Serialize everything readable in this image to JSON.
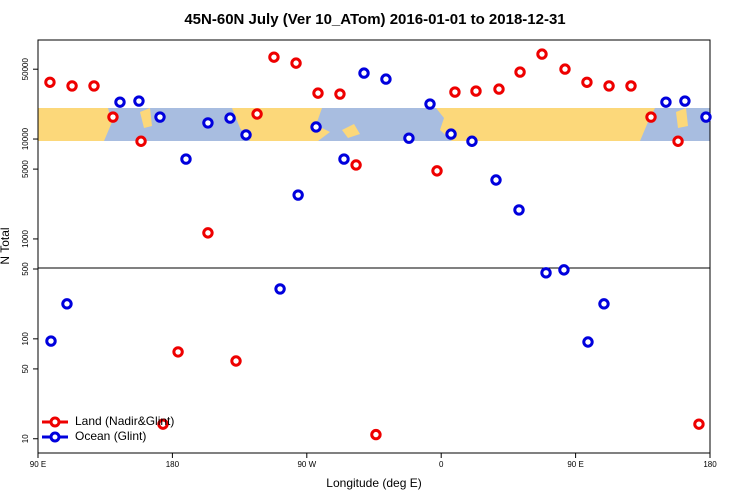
{
  "chart_data": {
    "type": "scatter",
    "title": "45N-60N July (Ver 10_ATom)   2016-01-01 to 2018-12-31",
    "x_label": "Longitude (deg E)",
    "y_label": "N Total",
    "xlim": [
      90,
      540
    ],
    "xticks": [
      {
        "value": 90,
        "label": "90 E"
      },
      180,
      {
        "value": 270,
        "label": "90 W"
      },
      {
        "value": 360,
        "label": "0"
      },
      {
        "value": 450,
        "label": "90 E"
      },
      {
        "value": 540,
        "label": "180"
      }
    ],
    "ylim": [
      7.2,
      98000
    ],
    "y_log": true,
    "yticks": [
      10,
      50,
      100,
      500,
      1000,
      5000,
      10000,
      50000
    ],
    "legend": "bottom-left",
    "series": [
      {
        "name": "Land (Nadir&Glint)",
        "color": "#ee0000",
        "x": [
          98.0,
          112.8,
          127.5,
          140.2,
          159.0,
          173.7,
          183.8,
          203.8,
          222.6,
          236.7,
          248.0,
          262.8,
          277.5,
          292.2,
          303.0,
          316.3,
          357.2,
          369.2,
          383.3,
          398.7,
          412.8,
          427.5,
          442.9,
          457.6,
          472.4,
          487.1,
          500.5,
          518.6,
          532.6
        ],
        "values": [
          37000,
          34000,
          34000,
          16600,
          9500,
          14,
          74,
          1150,
          60,
          17800,
          66000,
          57500,
          28800,
          28200,
          5500,
          11,
          4800,
          29500,
          30200,
          31600,
          46800,
          70800,
          50100,
          37000,
          34000,
          34000,
          16600,
          9500,
          14
        ]
      },
      {
        "name": "Ocean (Glint)",
        "color": "#0000dd",
        "x": [
          98.7,
          109.4,
          144.9,
          157.6,
          171.7,
          189.1,
          203.8,
          218.6,
          229.3,
          252.1,
          264.2,
          276.2,
          294.9,
          308.3,
          323.0,
          338.4,
          352.5,
          366.6,
          380.6,
          396.7,
          412.1,
          430.2,
          442.2,
          458.3,
          469.0,
          510.5,
          523.2,
          537.3
        ],
        "values": [
          95,
          224,
          23400,
          24000,
          16600,
          6300,
          14500,
          16200,
          11000,
          316,
          2750,
          13200,
          6300,
          45700,
          39800,
          10200,
          22400,
          11200,
          9500,
          3890,
          1950,
          458,
          490,
          93,
          224,
          23400,
          24000,
          16600
        ]
      }
    ]
  }
}
